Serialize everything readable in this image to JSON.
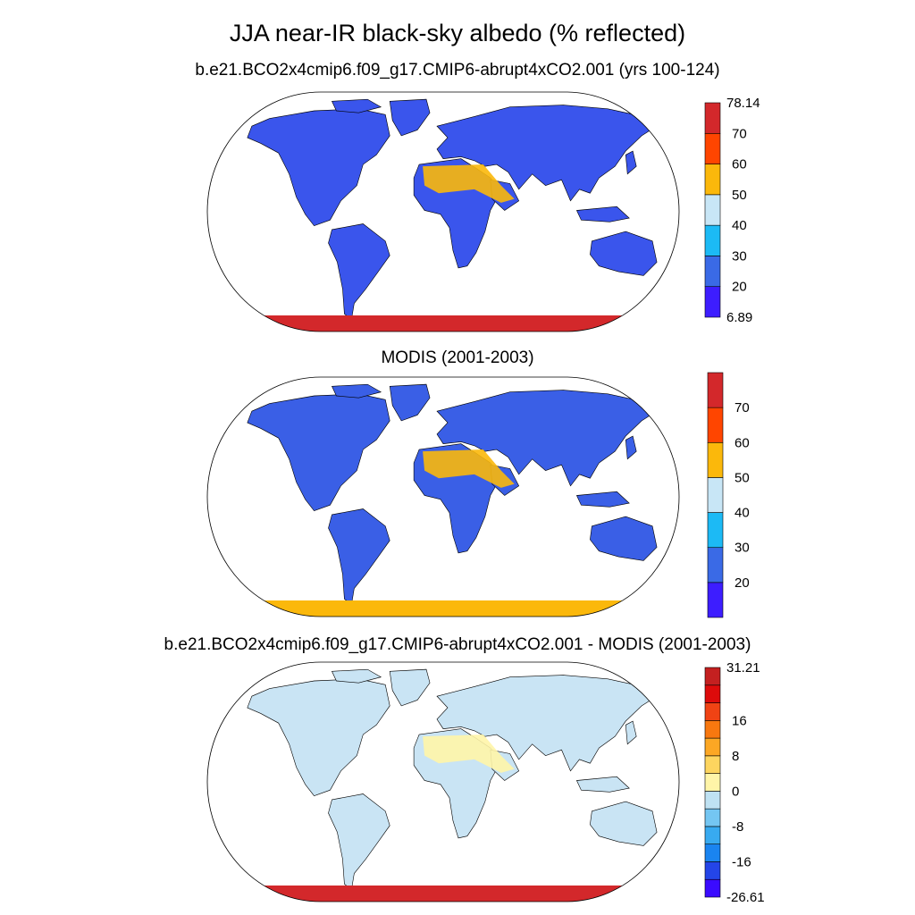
{
  "title": "JJA near-IR black-sky albedo (% reflected)",
  "panels": [
    {
      "subtitle": "b.e21.BCO2x4cmip6.f09_g17.CMIP6-abrupt4xCO2.001 (yrs 100-124)",
      "colorbar": {
        "colors": [
          "#3d1dff",
          "#3a6ae6",
          "#1cbaf5",
          "#c8e6f6",
          "#fbb80b",
          "#ff4500",
          "#d3282b"
        ],
        "labels": [
          "6.89",
          "20",
          "30",
          "40",
          "50",
          "60",
          "70",
          "78.14"
        ]
      },
      "antarctica_color": "#d3282b"
    },
    {
      "subtitle": "MODIS (2001-2003)",
      "colorbar": {
        "colors": [
          "#3d1dff",
          "#3a6ae6",
          "#1cbaf5",
          "#c8e6f6",
          "#fbb80b",
          "#ff4500",
          "#d3282b"
        ],
        "labels": [
          "",
          "20",
          "30",
          "40",
          "50",
          "60",
          "70",
          ""
        ]
      },
      "antarctica_color": "#fbb80b"
    },
    {
      "subtitle": "b.e21.BCO2x4cmip6.f09_g17.CMIP6-abrupt4xCO2.001 - MODIS (2001-2003)",
      "colorbar": {
        "colors": [
          "#3a0bff",
          "#2445e8",
          "#1a84f0",
          "#38aaf0",
          "#74c6f2",
          "#bfe2f3",
          "#fff5a8",
          "#fdd55f",
          "#fca724",
          "#f8780f",
          "#f04314",
          "#dd0b0b",
          "#c42020"
        ],
        "labels": [
          "-26.61",
          "",
          "-16",
          "",
          "-8",
          "",
          "0",
          "",
          "8",
          "",
          "16",
          "",
          "",
          "31.21"
        ]
      },
      "antarctica_color": "#d3282b"
    }
  ]
}
